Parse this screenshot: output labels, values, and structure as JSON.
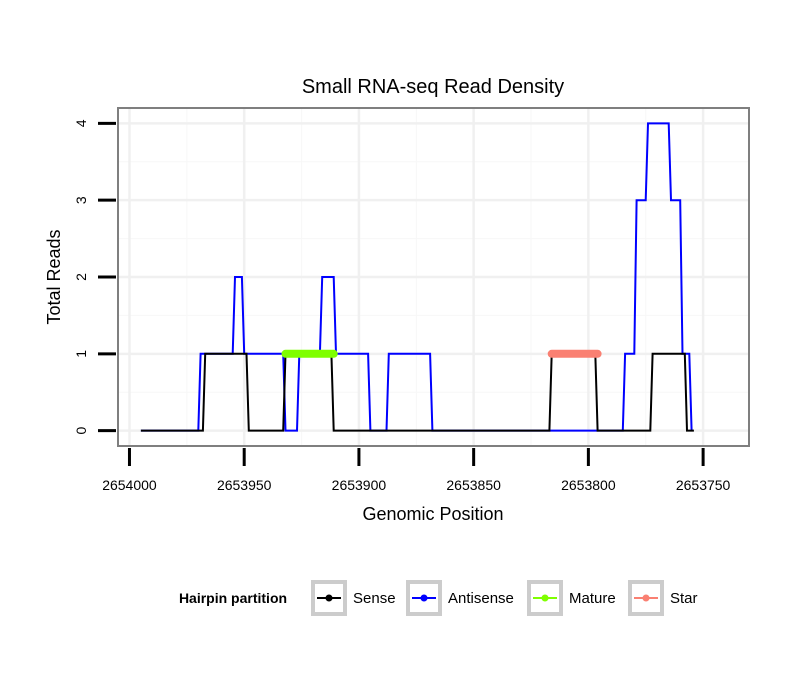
{
  "chart_data": {
    "type": "line",
    "title": "Small RNA-seq Read Density",
    "xlabel": "Genomic Position",
    "ylabel": "Total Reads",
    "xlim": [
      2654005,
      2653730
    ],
    "ylim": [
      -0.2,
      4.2
    ],
    "x_reversed": true,
    "grid": true,
    "x_ticks": [
      2654000,
      2653950,
      2653900,
      2653850,
      2653800,
      2653750
    ],
    "x_tick_labels": [
      "2654000",
      "2653950",
      "2653900",
      "2653850",
      "2653800",
      "2653750"
    ],
    "y_ticks": [
      0,
      1,
      2,
      3,
      4
    ],
    "y_tick_labels": [
      "0",
      "1",
      "2",
      "3",
      "4"
    ],
    "legend": {
      "title": "Hairpin partition",
      "position": "bottom",
      "entries": [
        {
          "name": "Sense",
          "color": "#000000"
        },
        {
          "name": "Antisense",
          "color": "#0000ff"
        },
        {
          "name": "Mature",
          "color": "#7fff00"
        },
        {
          "name": "Star",
          "color": "#fa8072"
        }
      ]
    },
    "series": [
      {
        "name": "Antisense",
        "color": "#0000ff",
        "stroke": "thin",
        "x": [
          2653995,
          2653970,
          2653969,
          2653955,
          2653954,
          2653951,
          2653950,
          2653933,
          2653932,
          2653927,
          2653926,
          2653917,
          2653916,
          2653911,
          2653910,
          2653896,
          2653895,
          2653888,
          2653887,
          2653869,
          2653868,
          2653814,
          2653813,
          2653799,
          2653798,
          2653785,
          2653784,
          2653780,
          2653779,
          2653775,
          2653774,
          2653765,
          2653764,
          2653760,
          2653759,
          2653756,
          2653755
        ],
        "y": [
          0,
          0,
          1,
          1,
          2,
          2,
          1,
          1,
          0,
          0,
          1,
          1,
          2,
          2,
          1,
          1,
          0,
          0,
          1,
          1,
          0,
          0,
          0,
          0,
          0,
          0,
          1,
          1,
          3,
          3,
          4,
          4,
          3,
          3,
          1,
          1,
          0
        ]
      },
      {
        "name": "Sense",
        "color": "#000000",
        "stroke": "thin",
        "x": [
          2653995,
          2653968,
          2653967,
          2653949,
          2653948,
          2653933,
          2653932,
          2653912,
          2653911,
          2653817,
          2653816,
          2653797,
          2653796,
          2653773,
          2653772,
          2653758,
          2653757,
          2653754
        ],
        "y": [
          0,
          0,
          1,
          1,
          0,
          0,
          1,
          1,
          0,
          0,
          1,
          1,
          0,
          0,
          1,
          1,
          0,
          0
        ]
      },
      {
        "name": "Mature",
        "color": "#7fff00",
        "stroke": "thick",
        "x": [
          2653932,
          2653911
        ],
        "y": [
          1,
          1
        ]
      },
      {
        "name": "Star",
        "color": "#fa8072",
        "stroke": "thick",
        "x": [
          2653816,
          2653796
        ],
        "y": [
          1,
          1
        ]
      }
    ]
  }
}
